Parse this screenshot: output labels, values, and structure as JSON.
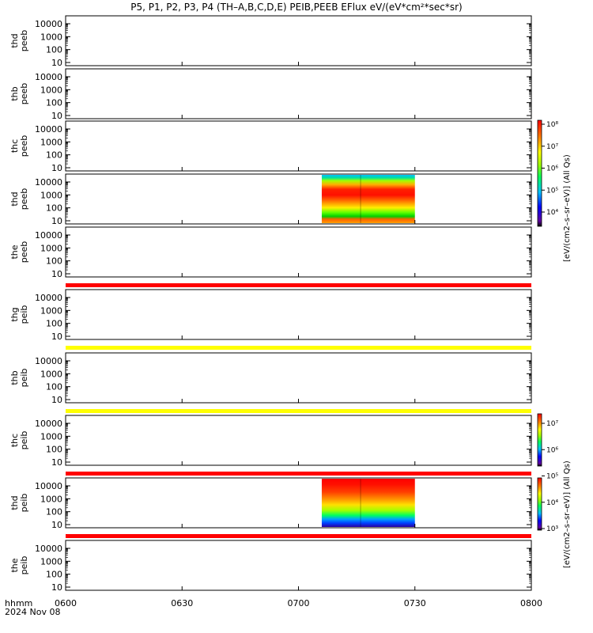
{
  "title": "P5, P1, P2, P3, P4 (TH–A,B,C,D,E) PEIB,PEEB EFlux eV/(eV*cm²*sec*sr)",
  "x_axis": {
    "label": "hhmm",
    "date": "2024 Nov 08",
    "ticks": [
      "0600",
      "0630",
      "0700",
      "0730",
      "0800"
    ],
    "tick_minutes": [
      0,
      30,
      60,
      90,
      120
    ]
  },
  "colors": {
    "flag_red": "#ff0000",
    "flag_yellow": "#ffff00"
  },
  "colorbars": [
    {
      "label": "[eV/(cm2–s–sr–eV)] (All Qs)",
      "panels": "electron (peeb)",
      "ticks": [
        "10⁸",
        "10⁷",
        "10⁶",
        "10⁵",
        "10⁴"
      ]
    },
    {
      "label": "[eV/(cm2–s–sr–eV)] (All Qs)",
      "panels": "ion (peib)",
      "ticks": [
        "10⁷",
        "10⁶",
        "10⁵",
        "10⁴",
        "10³"
      ]
    }
  ],
  "chart_data": {
    "type": "heatmap",
    "title": "P5, P1, P2, P3, P4 (TH–A,B,C,D,E) PEIB,PEEB EFlux eV/(eV*cm²*sec*sr)",
    "x_range_hhmm": [
      "0600",
      "0800"
    ],
    "y_scale": "log",
    "y_ticks": [
      "10",
      "100",
      "1000",
      "10000"
    ],
    "panels": [
      {
        "label": [
          "thd",
          "peeb"
        ],
        "data_start_min": 0,
        "data_end_min": 0,
        "flag_bar": null
      },
      {
        "label": [
          "thb",
          "peeb"
        ],
        "data_start_min": 0,
        "data_end_min": 0,
        "flag_bar": null
      },
      {
        "label": [
          "thc",
          "peeb"
        ],
        "data_start_min": 0,
        "data_end_min": 0,
        "flag_bar": null
      },
      {
        "label": [
          "thd",
          "peeb"
        ],
        "data_start_min": 66,
        "data_end_min": 90,
        "flag_bar": null
      },
      {
        "label": [
          "the",
          "peeb"
        ],
        "data_start_min": 0,
        "data_end_min": 0,
        "flag_bar": "flag_red"
      },
      {
        "label": [
          "thg",
          "peib"
        ],
        "data_start_min": 0,
        "data_end_min": 0,
        "flag_bar": "flag_yellow"
      },
      {
        "label": [
          "thb",
          "peib"
        ],
        "data_start_min": 0,
        "data_end_min": 0,
        "flag_bar": "flag_yellow"
      },
      {
        "label": [
          "thc",
          "peib"
        ],
        "data_start_min": 0,
        "data_end_min": 0,
        "flag_bar": "flag_red"
      },
      {
        "label": [
          "thd",
          "peib"
        ],
        "data_start_min": 66,
        "data_end_min": 90,
        "flag_bar": "flag_red"
      },
      {
        "label": [
          "the",
          "peib"
        ],
        "data_start_min": 0,
        "data_end_min": 0,
        "flag_bar": null
      }
    ]
  }
}
